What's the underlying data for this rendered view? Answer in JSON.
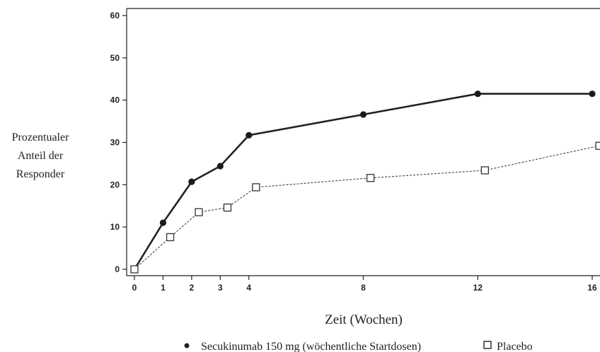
{
  "chart_data": {
    "type": "line",
    "ylabel": [
      "Prozentualer",
      "Anteil der",
      "Responder"
    ],
    "xlabel": "Zeit (Wochen)",
    "xlim": [
      0,
      16
    ],
    "ylim": [
      0,
      60
    ],
    "x_ticks": [
      0,
      1,
      2,
      3,
      4,
      8,
      12,
      16
    ],
    "y_ticks": [
      0,
      10,
      20,
      30,
      40,
      50,
      60
    ],
    "grid": false,
    "legend": "bottom",
    "series": [
      {
        "name": "Secukinumab 150 mg (wöchentliche Startdosen)",
        "marker": "filled-circle",
        "line": "solid",
        "color": "#222222",
        "x": [
          0,
          1,
          2,
          3,
          4,
          8,
          12,
          16
        ],
        "y": [
          0,
          11,
          20.7,
          24.4,
          31.7,
          36.6,
          41.5,
          41.5
        ]
      },
      {
        "name": "Placebo",
        "marker": "open-square",
        "line": "dashed",
        "color": "#444444",
        "x": [
          0,
          1.25,
          2.25,
          3.25,
          4.25,
          8.25,
          12.25,
          16.25
        ],
        "y": [
          0,
          7.6,
          13.5,
          14.6,
          19.4,
          21.6,
          23.4,
          29.2
        ]
      }
    ]
  }
}
